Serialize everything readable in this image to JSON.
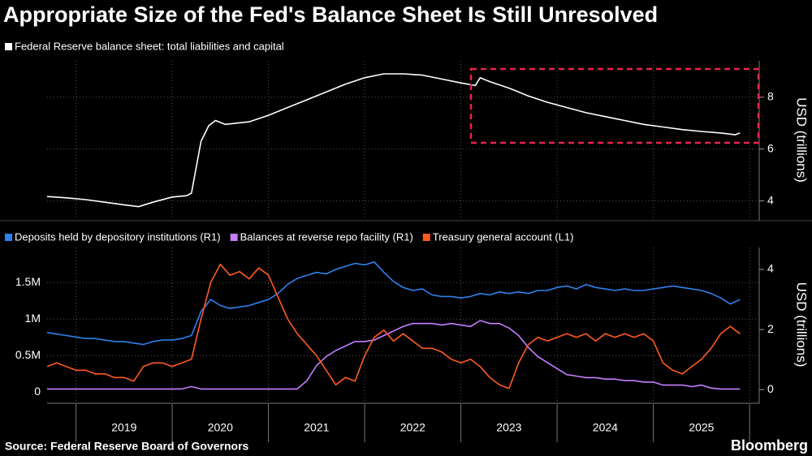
{
  "title": "Appropriate Size of the Fed's Balance Sheet Is Still Unresolved",
  "source": "Source: Federal Reserve Board of Governors",
  "brand": "Bloomberg",
  "chart_data": [
    {
      "type": "line",
      "y_label": "USD (trillions)",
      "grid": true,
      "xlim": [
        2018.7,
        2026.1
      ],
      "xgrid": [
        2019,
        2020,
        2021,
        2022,
        2023,
        2024,
        2025,
        2026
      ],
      "ylim": [
        3.3,
        9.4
      ],
      "yticks": [
        4,
        6,
        8
      ],
      "x": [
        2018.7,
        2018.9,
        2019.1,
        2019.3,
        2019.5,
        2019.65,
        2019.8,
        2020.0,
        2020.15,
        2020.2,
        2020.3,
        2020.38,
        2020.45,
        2020.55,
        2020.8,
        2021.0,
        2021.2,
        2021.4,
        2021.6,
        2021.8,
        2022.0,
        2022.2,
        2022.4,
        2022.6,
        2022.8,
        2023.0,
        2023.15,
        2023.2,
        2023.3,
        2023.5,
        2023.7,
        2023.9,
        2024.1,
        2024.3,
        2024.5,
        2024.7,
        2024.9,
        2025.1,
        2025.3,
        2025.5,
        2025.7,
        2025.85,
        2025.9
      ],
      "series": [
        {
          "name": "Federal Reserve balance sheet: total liabilities and capital",
          "color": "#ffffff",
          "values": [
            4.17,
            4.12,
            4.05,
            3.95,
            3.85,
            3.78,
            3.95,
            4.15,
            4.2,
            4.3,
            6.3,
            6.9,
            7.1,
            6.95,
            7.05,
            7.3,
            7.6,
            7.9,
            8.2,
            8.5,
            8.75,
            8.9,
            8.9,
            8.85,
            8.7,
            8.55,
            8.45,
            8.75,
            8.6,
            8.35,
            8.05,
            7.8,
            7.6,
            7.4,
            7.25,
            7.1,
            6.95,
            6.85,
            6.75,
            6.68,
            6.62,
            6.55,
            6.62
          ]
        }
      ]
    },
    {
      "type": "line",
      "y2_label": "USD (trillions)",
      "grid": true,
      "xlim": [
        2018.7,
        2026.1
      ],
      "xgrid": [
        2019,
        2020,
        2021,
        2022,
        2023,
        2024,
        2025,
        2026
      ],
      "xticks": [
        {
          "value": 2019.5,
          "label": "2019"
        },
        {
          "value": 2020.5,
          "label": "2020"
        },
        {
          "value": 2021.5,
          "label": "2021"
        },
        {
          "value": 2022.5,
          "label": "2022"
        },
        {
          "value": 2023.5,
          "label": "2023"
        },
        {
          "value": 2024.5,
          "label": "2024"
        },
        {
          "value": 2025.5,
          "label": "2025"
        }
      ],
      "ylim": [
        -130000,
        1980000
      ],
      "yticks": [
        0,
        {
          "value": 500000,
          "label": "0.5M"
        },
        {
          "value": 1000000,
          "label": "1M"
        },
        {
          "value": 1500000,
          "label": "1.5M"
        }
      ],
      "y2lim": [
        -0.4,
        4.73
      ],
      "y2ticks": [
        0,
        2,
        4
      ],
      "x": [
        2018.7,
        2018.8,
        2018.9,
        2019.0,
        2019.1,
        2019.2,
        2019.3,
        2019.4,
        2019.5,
        2019.6,
        2019.7,
        2019.8,
        2019.9,
        2020.0,
        2020.1,
        2020.2,
        2020.3,
        2020.4,
        2020.5,
        2020.6,
        2020.7,
        2020.8,
        2020.9,
        2021.0,
        2021.1,
        2021.2,
        2021.3,
        2021.4,
        2021.5,
        2021.6,
        2021.7,
        2021.8,
        2021.9,
        2022.0,
        2022.1,
        2022.2,
        2022.3,
        2022.4,
        2022.5,
        2022.6,
        2022.7,
        2022.8,
        2022.9,
        2023.0,
        2023.1,
        2023.2,
        2023.3,
        2023.4,
        2023.5,
        2023.6,
        2023.7,
        2023.8,
        2023.9,
        2024.0,
        2024.1,
        2024.2,
        2024.3,
        2024.4,
        2024.5,
        2024.6,
        2024.7,
        2024.8,
        2024.9,
        2025.0,
        2025.1,
        2025.2,
        2025.3,
        2025.4,
        2025.5,
        2025.6,
        2025.7,
        2025.8,
        2025.9
      ],
      "series": [
        {
          "name": "Deposits held by depository institutions (R1)",
          "color": "#2f80ed",
          "axis": "y2",
          "values": [
            1.9,
            1.85,
            1.8,
            1.75,
            1.7,
            1.7,
            1.65,
            1.6,
            1.6,
            1.55,
            1.5,
            1.6,
            1.65,
            1.65,
            1.7,
            1.8,
            2.6,
            3.0,
            2.8,
            2.7,
            2.75,
            2.8,
            2.9,
            3.0,
            3.2,
            3.5,
            3.7,
            3.8,
            3.9,
            3.85,
            4.0,
            4.1,
            4.2,
            4.15,
            4.25,
            3.9,
            3.6,
            3.4,
            3.3,
            3.35,
            3.15,
            3.1,
            3.1,
            3.05,
            3.1,
            3.2,
            3.15,
            3.25,
            3.2,
            3.25,
            3.2,
            3.3,
            3.3,
            3.4,
            3.45,
            3.35,
            3.5,
            3.4,
            3.35,
            3.3,
            3.35,
            3.3,
            3.3,
            3.35,
            3.4,
            3.45,
            3.4,
            3.35,
            3.3,
            3.2,
            3.05,
            2.85,
            3.0
          ]
        },
        {
          "name": "Balances at reverse repo facility (R1)",
          "color": "#c77dff",
          "axis": "y2",
          "values": [
            0.02,
            0.02,
            0.02,
            0.02,
            0.02,
            0.02,
            0.02,
            0.02,
            0.02,
            0.02,
            0.02,
            0.02,
            0.02,
            0.02,
            0.02,
            0.1,
            0.02,
            0.02,
            0.02,
            0.02,
            0.02,
            0.02,
            0.02,
            0.02,
            0.02,
            0.02,
            0.02,
            0.3,
            0.8,
            1.1,
            1.3,
            1.45,
            1.6,
            1.6,
            1.65,
            1.8,
            1.95,
            2.1,
            2.2,
            2.2,
            2.2,
            2.15,
            2.2,
            2.15,
            2.1,
            2.3,
            2.2,
            2.2,
            2.05,
            1.8,
            1.4,
            1.1,
            0.9,
            0.7,
            0.5,
            0.45,
            0.4,
            0.4,
            0.35,
            0.35,
            0.3,
            0.3,
            0.25,
            0.25,
            0.15,
            0.15,
            0.15,
            0.1,
            0.15,
            0.05,
            0.02,
            0.02,
            0.02
          ]
        },
        {
          "name": "Treasury general account  (L1)",
          "color": "#ff5a1f",
          "axis": "y",
          "values": [
            350000,
            400000,
            350000,
            300000,
            300000,
            250000,
            250000,
            200000,
            200000,
            150000,
            350000,
            400000,
            400000,
            350000,
            400000,
            450000,
            1000000,
            1500000,
            1750000,
            1600000,
            1650000,
            1550000,
            1700000,
            1600000,
            1300000,
            1000000,
            800000,
            650000,
            500000,
            300000,
            100000,
            200000,
            150000,
            500000,
            750000,
            850000,
            700000,
            800000,
            700000,
            600000,
            600000,
            550000,
            450000,
            400000,
            450000,
            350000,
            200000,
            100000,
            50000,
            400000,
            650000,
            750000,
            700000,
            750000,
            800000,
            750000,
            800000,
            700000,
            800000,
            750000,
            800000,
            750000,
            800000,
            700000,
            400000,
            300000,
            250000,
            350000,
            450000,
            600000,
            800000,
            900000,
            800000
          ]
        }
      ]
    }
  ]
}
